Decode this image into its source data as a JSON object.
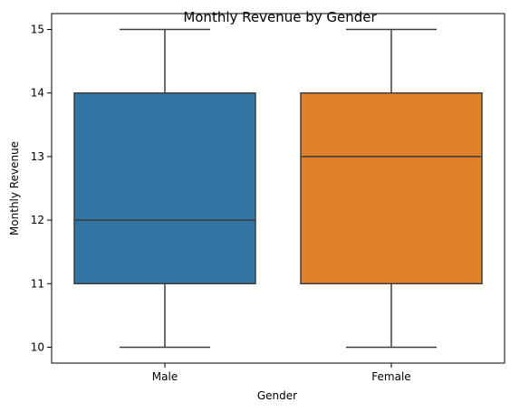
{
  "chart_data": {
    "type": "box",
    "title": "Monthly Revenue by Gender",
    "xlabel": "Gender",
    "ylabel": "Monthly Revenue",
    "categories": [
      "Male",
      "Female"
    ],
    "boxes": [
      {
        "category": "Male",
        "min": 10,
        "q1": 11,
        "median": 12,
        "q3": 14,
        "max": 15,
        "color": "#3274a1"
      },
      {
        "category": "Female",
        "min": 10,
        "q1": 11,
        "median": 13,
        "q3": 14,
        "max": 15,
        "color": "#e1812c"
      }
    ],
    "ylim": [
      9.75,
      15.25
    ],
    "yticks": [
      10,
      11,
      12,
      13,
      14,
      15
    ],
    "grid": false,
    "line_color": "#3d3d3d"
  }
}
